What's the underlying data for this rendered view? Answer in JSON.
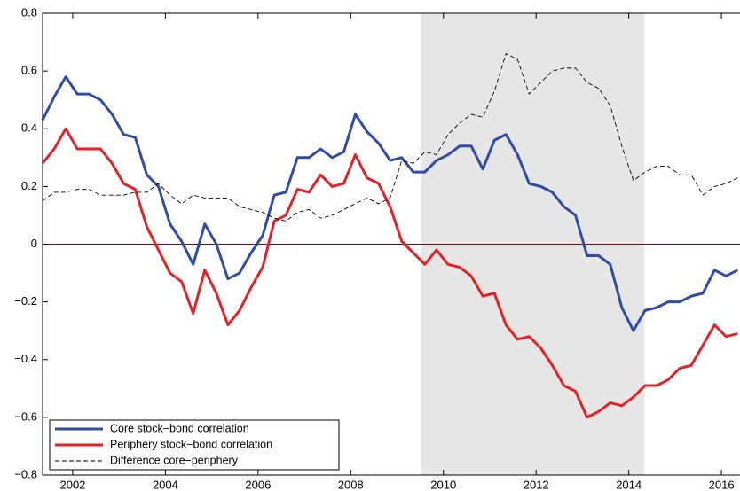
{
  "chart_data": {
    "type": "line",
    "x": [
      2001.35,
      2001.6,
      2001.85,
      2002.1,
      2002.35,
      2002.6,
      2002.85,
      2003.1,
      2003.35,
      2003.6,
      2003.85,
      2004.1,
      2004.35,
      2004.6,
      2004.85,
      2005.1,
      2005.35,
      2005.6,
      2005.85,
      2006.1,
      2006.35,
      2006.6,
      2006.85,
      2007.1,
      2007.35,
      2007.6,
      2007.85,
      2008.1,
      2008.35,
      2008.6,
      2008.85,
      2009.1,
      2009.35,
      2009.6,
      2009.85,
      2010.1,
      2010.35,
      2010.6,
      2010.85,
      2011.1,
      2011.35,
      2011.6,
      2011.85,
      2012.1,
      2012.35,
      2012.6,
      2012.85,
      2013.1,
      2013.35,
      2013.6,
      2013.85,
      2014.1,
      2014.35,
      2014.6,
      2014.85,
      2015.1,
      2015.35,
      2015.6,
      2015.85,
      2016.1,
      2016.35
    ],
    "series": [
      {
        "name": "Core stock−bond correlation",
        "color": "#2f4ea3",
        "style": "solid",
        "values": [
          0.43,
          0.51,
          0.58,
          0.52,
          0.52,
          0.5,
          0.45,
          0.38,
          0.37,
          0.24,
          0.2,
          0.07,
          0.01,
          -0.07,
          0.07,
          0.0,
          -0.12,
          -0.1,
          -0.03,
          0.03,
          0.17,
          0.18,
          0.3,
          0.3,
          0.33,
          0.3,
          0.32,
          0.45,
          0.39,
          0.35,
          0.29,
          0.3,
          0.25,
          0.25,
          0.29,
          0.31,
          0.34,
          0.34,
          0.26,
          0.36,
          0.38,
          0.31,
          0.21,
          0.2,
          0.18,
          0.13,
          0.1,
          -0.04,
          -0.04,
          -0.07,
          -0.22,
          -0.3,
          -0.23,
          -0.22,
          -0.2,
          -0.2,
          -0.18,
          -0.17,
          -0.09,
          -0.11,
          -0.09
        ]
      },
      {
        "name": "Periphery stock−bond correlation",
        "color": "#e32228",
        "style": "solid",
        "values": [
          0.28,
          0.33,
          0.4,
          0.33,
          0.33,
          0.33,
          0.28,
          0.21,
          0.19,
          0.06,
          -0.02,
          -0.1,
          -0.13,
          -0.24,
          -0.09,
          -0.17,
          -0.28,
          -0.23,
          -0.15,
          -0.08,
          0.08,
          0.1,
          0.19,
          0.18,
          0.24,
          0.2,
          0.21,
          0.31,
          0.23,
          0.21,
          0.13,
          0.01,
          -0.03,
          -0.07,
          -0.02,
          -0.07,
          -0.08,
          -0.11,
          -0.18,
          -0.17,
          -0.28,
          -0.33,
          -0.32,
          -0.36,
          -0.42,
          -0.49,
          -0.51,
          -0.6,
          -0.58,
          -0.55,
          -0.56,
          -0.53,
          -0.49,
          -0.49,
          -0.47,
          -0.43,
          -0.42,
          -0.35,
          -0.28,
          -0.32,
          -0.31
        ]
      },
      {
        "name": "Difference core−periphery",
        "color": "#000000",
        "style": "dashed",
        "values": [
          0.15,
          0.18,
          0.18,
          0.19,
          0.19,
          0.17,
          0.17,
          0.17,
          0.18,
          0.18,
          0.21,
          0.17,
          0.14,
          0.17,
          0.16,
          0.16,
          0.16,
          0.13,
          0.12,
          0.11,
          0.09,
          0.08,
          0.11,
          0.12,
          0.09,
          0.1,
          0.12,
          0.14,
          0.16,
          0.14,
          0.16,
          0.29,
          0.28,
          0.32,
          0.31,
          0.38,
          0.42,
          0.45,
          0.44,
          0.53,
          0.66,
          0.64,
          0.52,
          0.56,
          0.6,
          0.61,
          0.61,
          0.56,
          0.54,
          0.48,
          0.34,
          0.22,
          0.25,
          0.27,
          0.27,
          0.24,
          0.24,
          0.17,
          0.2,
          0.21,
          0.23
        ]
      }
    ],
    "xlim": [
      2001.35,
      2016.4
    ],
    "xticks": [
      2002,
      2004,
      2006,
      2008,
      2010,
      2012,
      2014,
      2016
    ],
    "ylim": [
      -0.8,
      0.8
    ],
    "yticks": [
      {
        "value": -0.8,
        "label": "−0.8"
      },
      {
        "value": -0.6,
        "label": "−0.6"
      },
      {
        "value": -0.4,
        "label": "−0.4"
      },
      {
        "value": -0.2,
        "label": "−0.2"
      },
      0,
      0.2,
      0.4,
      0.6,
      0.8
    ],
    "shaded_region": [
      2009.52,
      2014.34
    ],
    "shade_color": "#e6e6e6",
    "hline": 0,
    "hline_color": "#6b0f0f",
    "legend": "lower left"
  }
}
